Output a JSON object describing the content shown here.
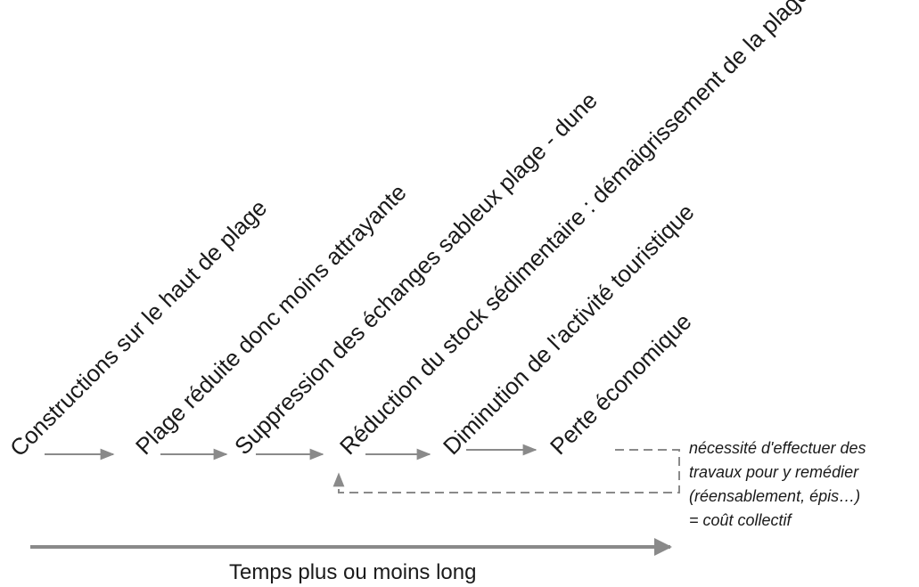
{
  "steps": [
    "Constructions sur le haut de plage",
    "Plage réduite donc moins attrayante",
    "Suppression des échanges sableux plage - dune",
    "Réduction du stock sédimentaire : démaigrissement de la plage",
    "Diminution de l'activité touristique",
    "Perte économique"
  ],
  "note": {
    "lines": [
      "nécessité d'effectuer des",
      "travaux pour y remédier",
      "(réensablement, épis…)",
      "= coût collectif"
    ]
  },
  "timeline": {
    "label": "Temps plus ou moins long"
  },
  "colors": {
    "arrow": "#8a8a8a",
    "dashed": "#8a8a8a",
    "text": "#1a1a1a"
  }
}
